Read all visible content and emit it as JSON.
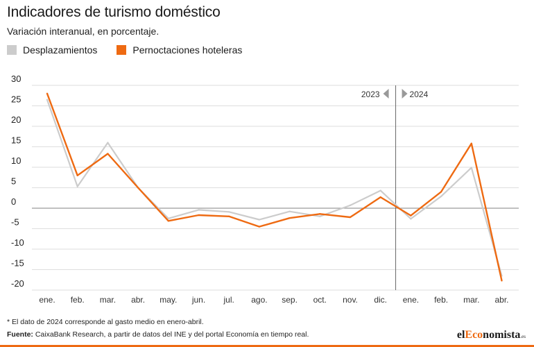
{
  "header": {
    "title": "Indicadores de turismo doméstico",
    "subtitle": "Variación interanual, en porcentaje."
  },
  "legend": {
    "items": [
      {
        "label": "Desplazamientos",
        "color": "#cccccc"
      },
      {
        "label": "Pernoctaciones hoteleras",
        "color": "#ee6a12"
      }
    ]
  },
  "chart_data": {
    "type": "line",
    "categories": [
      "ene.",
      "feb.",
      "mar.",
      "abr.",
      "may.",
      "jun.",
      "jul.",
      "ago.",
      "sep.",
      "oct.",
      "nov.",
      "dic.",
      "ene.",
      "feb.",
      "mar.",
      "abr."
    ],
    "series": [
      {
        "name": "Desplazamientos",
        "color": "#cccccc",
        "values": [
          26.5,
          5.3,
          16.0,
          5.0,
          -2.5,
          -0.4,
          -0.9,
          -2.8,
          -0.8,
          -2.0,
          0.7,
          4.3,
          -2.6,
          2.9,
          9.9,
          -16.5
        ]
      },
      {
        "name": "Pernoctaciones hoteleras",
        "color": "#ee6a12",
        "values": [
          28.0,
          8.0,
          13.3,
          5.0,
          -3.1,
          -1.7,
          -2.0,
          -4.5,
          -2.4,
          -1.4,
          -2.2,
          2.7,
          -1.8,
          4.0,
          15.8,
          -17.7
        ]
      }
    ],
    "ylim": [
      -20,
      30
    ],
    "yticks": [
      30,
      25,
      20,
      15,
      10,
      5,
      0,
      -5,
      -10,
      -15,
      -20
    ],
    "year_divider": {
      "after_index": 11,
      "left_label": "2023",
      "right_label": "2024"
    },
    "grid": true
  },
  "footer": {
    "note": "* El dato de 2024 corresponde al gasto medio en enero-abril.",
    "source_label": "Fuente:",
    "source_text": " CaixaBank Research, a partir de datos del INE y del portal Economía en tiempo real.",
    "brand_prefix": "el",
    "brand_accent": "Eco",
    "brand_suffix": "nomista",
    "brand_tld": ".es"
  }
}
